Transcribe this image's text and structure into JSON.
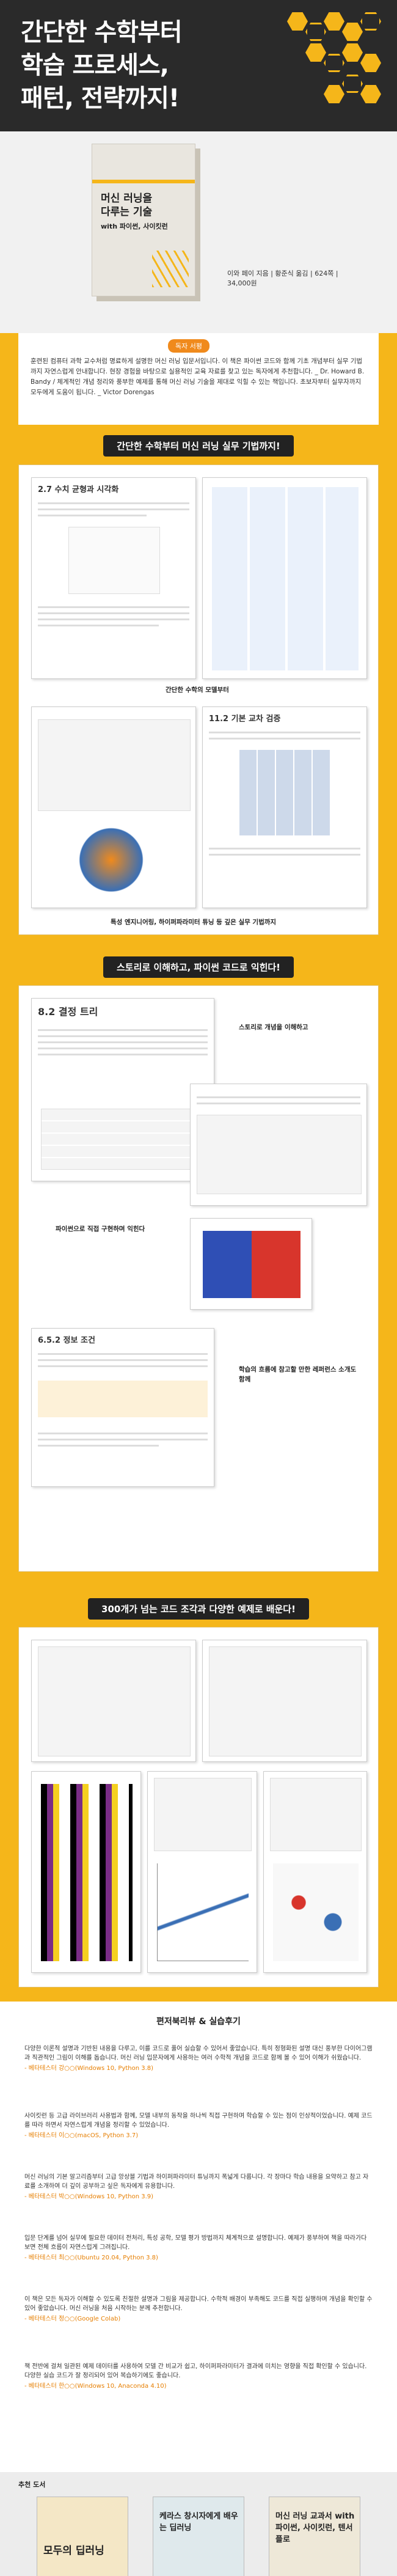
{
  "header": {
    "title_lines": [
      "간단한 수학부터",
      "학습 프로세스,",
      "패턴, 전략까지!"
    ]
  },
  "book": {
    "cover_title": [
      "머신 러닝을",
      "다루는 기술",
      "with 파이썬, 사이킷런"
    ],
    "info": "이와 페이 지음 | 황준식 옮김 | 624쪽 | 34,000원"
  },
  "reader_review": {
    "label": "독자 서평",
    "text": "훈련된 컴퓨터 과학 교수처럼 명료하게 설명한 머신 러닝 입문서입니다. 이 책은 파이썬 코드와 함께 기초 개념부터 실무 기법까지 자연스럽게 안내합니다. 현장 경험을 바탕으로 실용적인 교육 자료를 찾고 있는 독자에게 추천합니다. _ Dr. Howard B. Bandy / 체계적인 개념 정리와 풍부한 예제를 통해 머신 러닝 기술을 제대로 익힐 수 있는 책입니다. 초보자부터 실무자까지 모두에게 도움이 됩니다. _ Victor Dorengas"
  },
  "sections": [
    {
      "heading": "간단한 수학부터 머신 러닝 실무 기법까지!",
      "page_titles": [
        "2.7 수치 균형과 시각화",
        "11.2 기본 교차 검증"
      ],
      "captions": [
        "간단한 수학의 모델부터",
        "특성 엔지니어링, 하이퍼파라미터 튜닝 등 깊은 실무 기법까지"
      ]
    },
    {
      "heading": "스토리로 이해하고, 파이썬 코드로 익힌다!",
      "page_titles": [
        "8.2 결정 트리",
        "6.5.2 정보 조건"
      ],
      "captions": [
        "스토리로 개념을 이해하고",
        "파이썬으로 직접 구현하며 익힌다",
        "학습의 흐름에 참고할 만한 레퍼런스 소개도 함께"
      ]
    },
    {
      "heading": "300개가 넘는 코드 조각과 다양한 예제로 배운다!"
    }
  ],
  "reviews": {
    "title": "편저북리뷰 & 실습후기",
    "items": [
      {
        "text": "다양한 이론적 설명과 기반된 내용을 다루고, 이를 코드로 풀어 실습할 수 있어서 좋았습니다. 특히 정형화된 설명 대신 풍부한 다이어그램과 직관적인 그림이 이해를 돕습니다. 머신 러닝 입문자에게 사용하는 여러 수학적 개념을 코드로 함께 볼 수 있어 이해가 쉬웠습니다.",
        "by": "- 베타테스터 강○○(Windows 10, Python 3.8)"
      },
      {
        "text": "사이킷런 등 고급 라이브러리 사용법과 함께, 모델 내부의 동작을 하나씩 직접 구현하며 학습할 수 있는 점이 인상적이었습니다. 예제 코드를 따라 하면서 자연스럽게 개념을 정리할 수 있었습니다.",
        "by": "- 베타테스터 이○○(macOS, Python 3.7)"
      },
      {
        "text": "머신 러닝의 기본 알고리즘부터 고급 앙상블 기법과 하이퍼파라미터 튜닝까지 폭넓게 다룹니다. 각 장마다 학습 내용을 요약하고 참고 자료를 소개하여 더 깊이 공부하고 싶은 독자에게 유용합니다.",
        "by": "- 베타테스터 박○○(Windows 10, Python 3.9)"
      },
      {
        "text": "입문 단계를 넘어 실무에 필요한 데이터 전처리, 특성 공학, 모델 평가 방법까지 체계적으로 설명합니다. 예제가 풍부하여 책을 따라가다 보면 전체 흐름이 자연스럽게 그려집니다.",
        "by": "- 베타테스터 최○○(Ubuntu 20.04, Python 3.8)"
      },
      {
        "text": "이 책은 모든 독자가 이해할 수 있도록 친절한 설명과 그림을 제공합니다. 수학적 배경이 부족해도 코드를 직접 실행하며 개념을 확인할 수 있어 좋았습니다. 머신 러닝을 처음 시작하는 분께 추천합니다.",
        "by": "- 베타테스터 정○○(Google Colab)"
      },
      {
        "text": "책 전반에 걸쳐 일관된 예제 데이터를 사용하여 모델 간 비교가 쉽고, 하이퍼파라미터가 결과에 미치는 영향을 직접 확인할 수 있습니다. 다양한 실습 코드가 잘 정리되어 있어 복습하기에도 좋습니다.",
        "by": "- 베타테스터 한○○(Windows 10, Anaconda 4.10)"
      }
    ]
  },
  "recommended": {
    "label": "추천 도서",
    "books": [
      "모두의 딥러닝",
      "케라스 창시자에게 배우는 딥러닝",
      "머신 러닝 교과서 with 파이썬, 사이킷런, 텐서플로"
    ]
  }
}
